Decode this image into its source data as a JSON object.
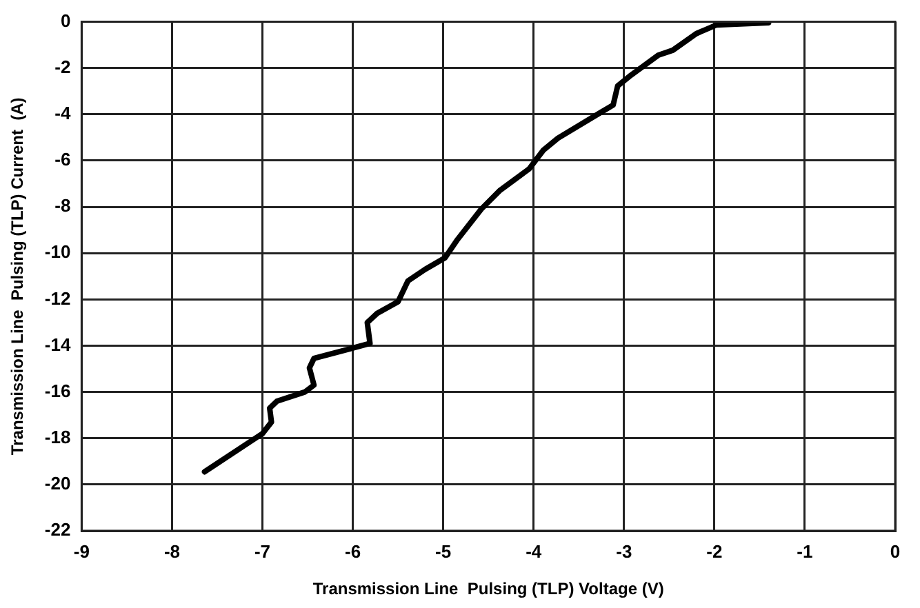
{
  "chart_data": {
    "type": "line",
    "xlabel": "Transmission Line  Pulsing (TLP) Voltage (V)",
    "ylabel": "Transmission Line  Pulsing (TLP) Current  (A)",
    "xlim": [
      -9,
      0
    ],
    "xticks": [
      -9,
      -8,
      -7,
      -6,
      -5,
      -4,
      -3,
      -2,
      -1,
      0
    ],
    "ylim": [
      -22,
      0
    ],
    "yticks": [
      -22,
      -20,
      -18,
      -16,
      -14,
      -12,
      -10,
      -8,
      -6,
      -4,
      -2,
      0
    ],
    "grid": true,
    "legend": false,
    "marker": "none",
    "line_style": "solid",
    "series": [
      {
        "color": "#000000",
        "x": [
          -7.64,
          -7.0,
          -6.9,
          -6.92,
          -6.84,
          -6.53,
          -6.43,
          -6.48,
          -6.43,
          -6.0,
          -5.81,
          -5.84,
          -5.73,
          -5.5,
          -5.39,
          -5.2,
          -4.98,
          -4.84,
          -4.58,
          -4.37,
          -4.05,
          -3.89,
          -3.73,
          -3.25,
          -3.12,
          -3.07,
          -2.94,
          -2.62,
          -2.46,
          -2.2,
          -1.98,
          -1.4
        ],
        "values": [
          -19.45,
          -17.8,
          -17.3,
          -16.7,
          -16.4,
          -16.0,
          -15.7,
          -14.96,
          -14.55,
          -14.1,
          -13.9,
          -13.0,
          -12.6,
          -12.1,
          -11.2,
          -10.7,
          -10.2,
          -9.4,
          -8.1,
          -7.28,
          -6.36,
          -5.54,
          -5.03,
          -3.9,
          -3.6,
          -2.77,
          -2.36,
          -1.44,
          -1.23,
          -0.51,
          -0.14,
          -0.04
        ]
      }
    ]
  }
}
